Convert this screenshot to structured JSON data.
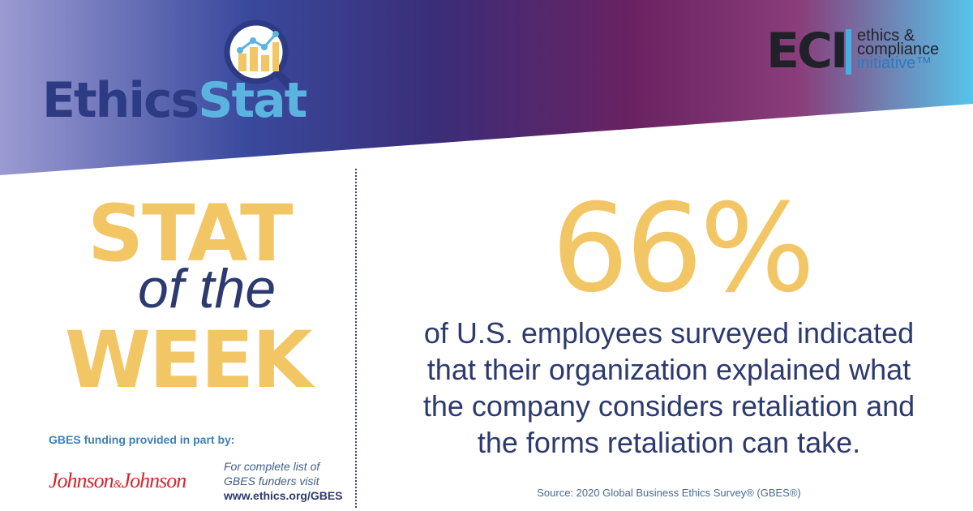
{
  "brand": {
    "logo_part1": "Ethics",
    "logo_part2": "Stat",
    "org_letters": "ECI",
    "org_line1": "ethics &",
    "org_line2": "compliance",
    "org_line3": "initiative™"
  },
  "headline": {
    "line1": "STAT",
    "line2": "of the",
    "line3": "WEEK"
  },
  "stat": {
    "value": "66%",
    "description_lines": [
      "of U.S. employees surveyed indicated",
      "that their organization explained what",
      "the company considers retaliation and",
      "the forms retaliation can take."
    ],
    "source": "Source: 2020 Global Business Ethics Survey® (GBES®)"
  },
  "funding": {
    "label": "GBES funding provided in part by:",
    "sponsor_part1": "Johnson",
    "sponsor_amp": "&",
    "sponsor_part2": "Johnson",
    "note_line1": "For complete list of",
    "note_line2": "GBES funders visit",
    "url": "www.ethics.org/GBES"
  },
  "colors": {
    "gold": "#f3c665",
    "navy": "#2d3a6e",
    "sky": "#5bb3e0",
    "plum": "#6a2262",
    "sponsor_red": "#d5252e"
  }
}
